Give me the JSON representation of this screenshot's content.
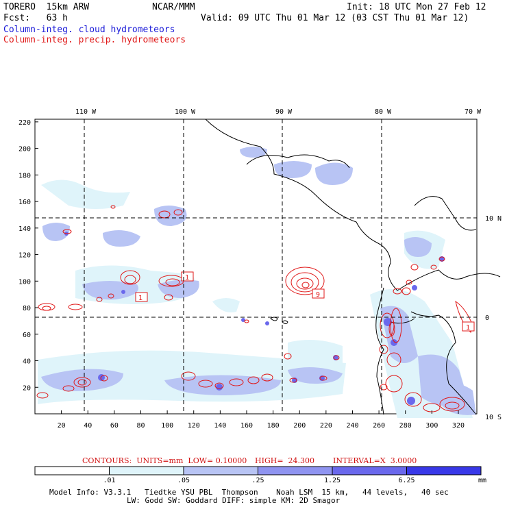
{
  "header": {
    "model": "TORERO  15km ARW",
    "org": "NCAR/MMM",
    "init": "Init: 18 UTC Mon 27 Feb 12",
    "fcst": "Fcst:   63 h",
    "valid": "Valid: 09 UTC Thu 01 Mar 12 (03 CST Thu 01 Mar 12)",
    "field_blue": "Column-integ. cloud hydrometeors",
    "field_red": "Column-integ. precip. hydrometeors"
  },
  "axes": {
    "top_lon_labels": [
      "110 W",
      "100 W",
      "90 W",
      "80 W",
      "70 W"
    ],
    "right_lat_labels": [
      "10 N",
      "0",
      "10 S"
    ],
    "x_ticks": [
      "20",
      "40",
      "60",
      "80",
      "100",
      "120",
      "140",
      "160",
      "180",
      "200",
      "220",
      "240",
      "260",
      "280",
      "300",
      "320"
    ],
    "y_ticks": [
      "220",
      "200",
      "180",
      "160",
      "140",
      "120",
      "100",
      "80",
      "60",
      "40",
      "20"
    ]
  },
  "map_labels": {
    "high_1": "1",
    "high_2": "9",
    "high_3": "1"
  },
  "contours": {
    "label": "CONTOURS:  UNITS=mm  LOW= 0.10000",
    "high": "HIGH=  24.300",
    "interval": "INTERVAL=X  3.0000"
  },
  "colorbar": {
    "tick_labels": [
      ".01",
      ".05",
      ".25",
      "1.25",
      "6.25"
    ],
    "unit": "mm",
    "colors": [
      "#ffffff",
      "#dff4fa",
      "#b8c4f4",
      "#8f94f0",
      "#6a68ec",
      "#3838e8"
    ]
  },
  "model_info": {
    "line1": "Model Info: V3.3.1   Tiedtke YSU PBL  Thompson    Noah LSM  15 km,   44 levels,   40 sec",
    "line2": "LW: Godd SW: Goddard DIFF: simple KM: 2D Smagor"
  },
  "colors": {
    "cloud": "#1a1ad8",
    "precip": "#e01818",
    "coast": "#000000"
  }
}
